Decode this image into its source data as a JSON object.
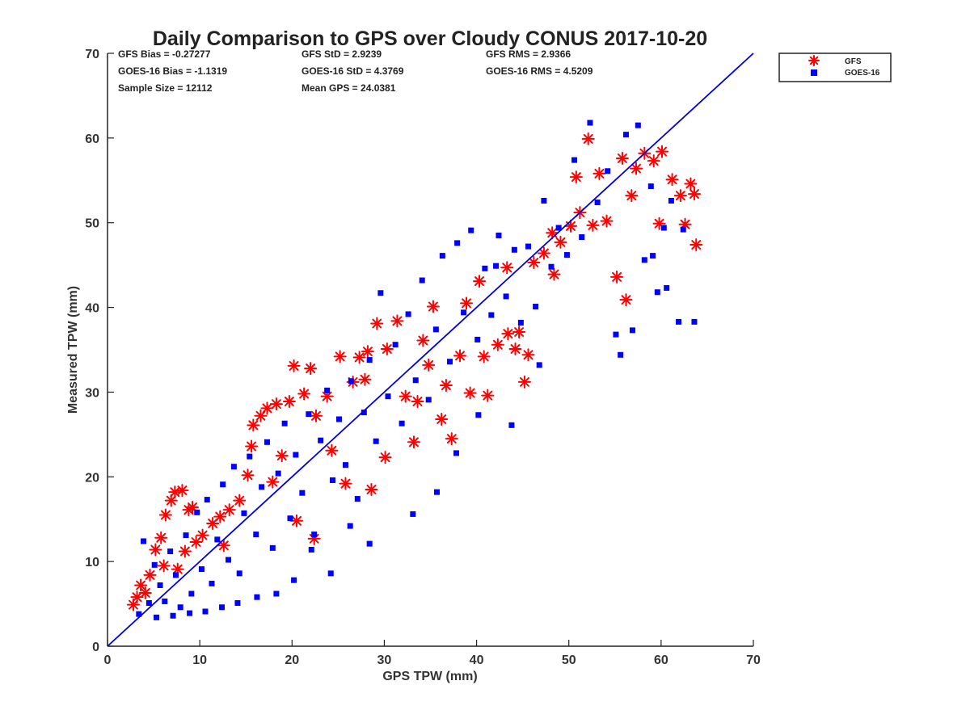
{
  "chart_data": {
    "type": "scatter",
    "title": "Daily Comparison to GPS over Cloudy CONUS 2017-10-20",
    "xlabel": "GPS TPW (mm)",
    "ylabel": "Measured TPW (mm)",
    "xlim": [
      0,
      70
    ],
    "ylim": [
      0,
      70
    ],
    "xticks": [
      "0",
      "10",
      "20",
      "30",
      "40",
      "50",
      "60",
      "70"
    ],
    "yticks": [
      "0",
      "10",
      "20",
      "30",
      "40",
      "50",
      "60",
      "70"
    ],
    "grid": false,
    "legend_position": "top-right (outside plot area)",
    "stats": [
      "GFS Bias = -0.27277",
      "GFS StD = 2.9239",
      "GFS RMS = 2.9366",
      "GOES-16 Bias = -1.1319",
      "GOES-16 StD = 4.3769",
      "GOES-16 RMS = 4.5209",
      "Sample Size = 12112",
      "Mean GPS = 24.0381"
    ],
    "reference_line": {
      "from": [
        0,
        0
      ],
      "to": [
        70,
        70
      ],
      "color": "#0000dd"
    },
    "series": [
      {
        "name": "GFS",
        "marker": "asterisk",
        "color": "#ff0000",
        "points": [
          [
            2.8,
            4.9
          ],
          [
            3.2,
            5.8
          ],
          [
            3.6,
            7.2
          ],
          [
            4.1,
            6.3
          ],
          [
            4.6,
            8.4
          ],
          [
            5.2,
            11.4
          ],
          [
            5.8,
            12.8
          ],
          [
            6.3,
            15.5
          ],
          [
            6.9,
            17.2
          ],
          [
            7.3,
            18.2
          ],
          [
            8.1,
            18.4
          ],
          [
            8.8,
            16.1
          ],
          [
            9.2,
            16.4
          ],
          [
            7.6,
            9.1
          ],
          [
            8.4,
            11.2
          ],
          [
            10.3,
            13.1
          ],
          [
            11.4,
            14.5
          ],
          [
            12.2,
            15.3
          ],
          [
            13.2,
            16.1
          ],
          [
            14.3,
            17.2
          ],
          [
            15.2,
            20.2
          ],
          [
            15.6,
            23.6
          ],
          [
            15.8,
            26.1
          ],
          [
            16.6,
            27.2
          ],
          [
            17.3,
            28.1
          ],
          [
            18.3,
            28.6
          ],
          [
            18.9,
            22.5
          ],
          [
            19.7,
            28.9
          ],
          [
            20.2,
            33.1
          ],
          [
            21.3,
            29.8
          ],
          [
            22.0,
            32.8
          ],
          [
            22.6,
            27.2
          ],
          [
            23.8,
            29.5
          ],
          [
            25.2,
            34.2
          ],
          [
            26.6,
            31.2
          ],
          [
            27.3,
            34.1
          ],
          [
            28.2,
            34.8
          ],
          [
            29.2,
            38.1
          ],
          [
            30.3,
            35.1
          ],
          [
            31.4,
            38.4
          ],
          [
            32.3,
            29.5
          ],
          [
            33.2,
            24.1
          ],
          [
            34.2,
            36.1
          ],
          [
            35.3,
            40.1
          ],
          [
            36.2,
            26.8
          ],
          [
            37.3,
            24.5
          ],
          [
            38.2,
            34.3
          ],
          [
            39.3,
            29.9
          ],
          [
            40.3,
            43.1
          ],
          [
            41.2,
            29.6
          ],
          [
            42.3,
            35.6
          ],
          [
            43.4,
            36.9
          ],
          [
            44.2,
            35.1
          ],
          [
            45.2,
            31.2
          ],
          [
            45.6,
            34.4
          ],
          [
            46.2,
            45.3
          ],
          [
            47.3,
            46.4
          ],
          [
            48.2,
            48.8
          ],
          [
            49.1,
            47.7
          ],
          [
            50.2,
            49.6
          ],
          [
            51.2,
            51.2
          ],
          [
            52.1,
            59.9
          ],
          [
            53.3,
            55.8
          ],
          [
            54.1,
            50.2
          ],
          [
            55.2,
            43.6
          ],
          [
            56.2,
            40.9
          ],
          [
            57.3,
            56.4
          ],
          [
            58.2,
            58.2
          ],
          [
            59.2,
            57.3
          ],
          [
            60.1,
            58.4
          ],
          [
            61.2,
            55.1
          ],
          [
            62.1,
            53.2
          ],
          [
            62.6,
            49.8
          ],
          [
            63.2,
            54.6
          ],
          [
            63.6,
            53.4
          ],
          [
            63.8,
            47.4
          ],
          [
            20.5,
            14.8
          ],
          [
            22.4,
            12.7
          ],
          [
            12.6,
            11.9
          ],
          [
            25.8,
            19.2
          ],
          [
            28.6,
            18.5
          ],
          [
            30.1,
            22.3
          ],
          [
            33.6,
            28.9
          ],
          [
            36.7,
            30.8
          ],
          [
            40.8,
            34.2
          ],
          [
            44.6,
            37.1
          ],
          [
            48.4,
            43.9
          ],
          [
            52.6,
            49.7
          ],
          [
            56.8,
            53.2
          ],
          [
            59.8,
            49.9
          ],
          [
            6.1,
            9.5
          ],
          [
            9.6,
            12.3
          ],
          [
            17.9,
            19.4
          ],
          [
            24.3,
            23.1
          ],
          [
            27.9,
            31.5
          ],
          [
            34.8,
            33.2
          ],
          [
            38.9,
            40.5
          ],
          [
            43.3,
            44.7
          ],
          [
            50.8,
            55.4
          ],
          [
            55.8,
            57.6
          ]
        ]
      },
      {
        "name": "GOES-16",
        "marker": "square",
        "color": "#0000ff",
        "points": [
          [
            3.4,
            3.8
          ],
          [
            3.9,
            12.4
          ],
          [
            4.5,
            5.1
          ],
          [
            5.1,
            9.6
          ],
          [
            5.7,
            7.2
          ],
          [
            6.2,
            5.3
          ],
          [
            6.8,
            11.2
          ],
          [
            7.4,
            8.4
          ],
          [
            7.9,
            4.6
          ],
          [
            8.5,
            13.1
          ],
          [
            9.1,
            6.2
          ],
          [
            9.7,
            15.8
          ],
          [
            10.2,
            9.1
          ],
          [
            10.8,
            17.3
          ],
          [
            11.3,
            7.4
          ],
          [
            11.9,
            12.6
          ],
          [
            12.5,
            19.1
          ],
          [
            13.1,
            10.2
          ],
          [
            13.7,
            21.2
          ],
          [
            14.3,
            8.6
          ],
          [
            14.8,
            15.7
          ],
          [
            15.4,
            22.4
          ],
          [
            16.1,
            13.2
          ],
          [
            16.7,
            18.8
          ],
          [
            17.3,
            24.1
          ],
          [
            17.9,
            11.6
          ],
          [
            18.5,
            20.4
          ],
          [
            19.2,
            26.3
          ],
          [
            19.8,
            15.1
          ],
          [
            20.4,
            22.6
          ],
          [
            21.1,
            18.1
          ],
          [
            21.8,
            27.4
          ],
          [
            22.4,
            13.2
          ],
          [
            23.1,
            24.3
          ],
          [
            23.8,
            30.2
          ],
          [
            24.4,
            19.6
          ],
          [
            25.1,
            26.8
          ],
          [
            25.8,
            21.4
          ],
          [
            26.4,
            31.3
          ],
          [
            27.1,
            17.4
          ],
          [
            27.8,
            27.6
          ],
          [
            28.4,
            33.8
          ],
          [
            29.1,
            24.2
          ],
          [
            29.6,
            41.7
          ],
          [
            30.4,
            29.5
          ],
          [
            31.2,
            35.6
          ],
          [
            31.9,
            26.3
          ],
          [
            32.6,
            39.2
          ],
          [
            33.4,
            31.4
          ],
          [
            34.1,
            43.2
          ],
          [
            34.8,
            29.1
          ],
          [
            35.6,
            37.4
          ],
          [
            36.3,
            46.1
          ],
          [
            37.1,
            33.6
          ],
          [
            37.9,
            47.6
          ],
          [
            38.6,
            39.4
          ],
          [
            39.4,
            49.1
          ],
          [
            40.1,
            36.2
          ],
          [
            40.9,
            44.6
          ],
          [
            41.6,
            39.1
          ],
          [
            42.4,
            48.5
          ],
          [
            43.2,
            41.3
          ],
          [
            44.1,
            46.8
          ],
          [
            44.8,
            38.2
          ],
          [
            45.6,
            47.2
          ],
          [
            46.4,
            40.1
          ],
          [
            47.3,
            52.6
          ],
          [
            48.1,
            44.8
          ],
          [
            48.9,
            49.4
          ],
          [
            49.8,
            46.2
          ],
          [
            50.6,
            57.4
          ],
          [
            51.4,
            48.3
          ],
          [
            52.3,
            61.8
          ],
          [
            53.1,
            52.4
          ],
          [
            54.2,
            56.1
          ],
          [
            55.1,
            36.8
          ],
          [
            55.6,
            34.4
          ],
          [
            56.2,
            60.4
          ],
          [
            56.9,
            37.3
          ],
          [
            57.5,
            61.5
          ],
          [
            58.2,
            45.6
          ],
          [
            58.9,
            54.3
          ],
          [
            59.6,
            41.8
          ],
          [
            60.3,
            49.4
          ],
          [
            61.1,
            52.6
          ],
          [
            61.9,
            38.3
          ],
          [
            62.4,
            49.2
          ],
          [
            63.6,
            38.3
          ],
          [
            60.6,
            42.3
          ],
          [
            59.1,
            46.1
          ],
          [
            33.1,
            15.6
          ],
          [
            35.7,
            18.2
          ],
          [
            37.8,
            22.8
          ],
          [
            28.4,
            12.1
          ],
          [
            26.3,
            14.2
          ],
          [
            24.2,
            8.6
          ],
          [
            22.1,
            11.4
          ],
          [
            20.2,
            7.8
          ],
          [
            18.3,
            6.2
          ],
          [
            16.2,
            5.8
          ],
          [
            14.1,
            5.1
          ],
          [
            12.4,
            4.6
          ],
          [
            10.6,
            4.1
          ],
          [
            8.9,
            3.9
          ],
          [
            7.1,
            3.6
          ],
          [
            5.3,
            3.4
          ],
          [
            43.8,
            26.1
          ],
          [
            40.2,
            27.3
          ],
          [
            46.8,
            33.2
          ],
          [
            42.1,
            44.9
          ]
        ]
      }
    ]
  }
}
